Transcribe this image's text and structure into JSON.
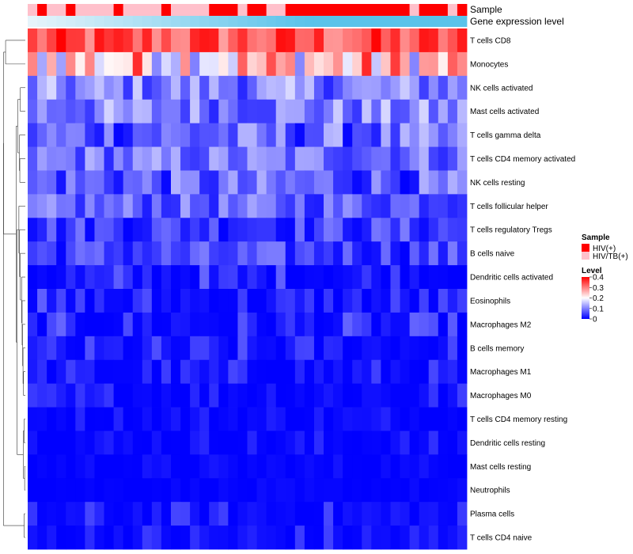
{
  "chart_data": {
    "type": "heatmap",
    "title": "",
    "annotation_tracks": [
      {
        "key": "sample",
        "label": "Sample"
      },
      {
        "key": "gene_expression",
        "label": "Gene expression level"
      }
    ],
    "rows": [
      "T cells CD8",
      "Monocytes",
      "NK cells activated",
      "Mast cells activated",
      "T cells gamma delta",
      "T cells CD4 memory activated",
      "NK cells resting",
      "T cells follicular helper",
      "T cells regulatory  Tregs",
      "B cells naive",
      "Dendritic cells activated",
      "Eosinophils",
      "Macrophages M2",
      "B cells memory",
      "Macrophages M1",
      "Macrophages M0",
      "T cells CD4 memory resting",
      "Dendritic cells resting",
      "Mast cells resting",
      "Neutrophils",
      "Plasma cells",
      "T cells CD4 naive"
    ],
    "n_columns": 46,
    "sample_groups": [
      "HIV(+)",
      "HIV/TB(+)"
    ],
    "sample_group_colors": [
      "#ff0000",
      "#ffc0cb"
    ],
    "sample_annotation": [
      1,
      0,
      1,
      1,
      0,
      1,
      1,
      1,
      1,
      0,
      1,
      1,
      1,
      1,
      0,
      1,
      1,
      1,
      1,
      0,
      0,
      0,
      1,
      0,
      0,
      1,
      1,
      0,
      0,
      0,
      0,
      0,
      0,
      0,
      0,
      0,
      0,
      0,
      0,
      0,
      1,
      0,
      0,
      0,
      1,
      0
    ],
    "gene_expression_gradient": [
      "#e6f4fb",
      "#5bc3ea"
    ],
    "color_scale": {
      "min": 0,
      "max": 0.4,
      "colors": [
        "#0000ff",
        "#ffffff",
        "#ff0000"
      ],
      "midpoint": 0.2
    },
    "legend": {
      "sample_title": "Sample",
      "level_title": "Level",
      "level_ticks": [
        "0.4",
        "0.3",
        "0.2",
        "0.1",
        "0"
      ],
      "level_tick_values": [
        0.4,
        0.3,
        0.2,
        0.1,
        0
      ],
      "position": "right"
    },
    "row_ranges": [
      [
        0.26,
        0.4
      ],
      [
        0.1,
        0.38
      ],
      [
        0.03,
        0.17
      ],
      [
        0.03,
        0.17
      ],
      [
        0.0,
        0.15
      ],
      [
        0.03,
        0.15
      ],
      [
        0.0,
        0.14
      ],
      [
        0.02,
        0.13
      ],
      [
        0.0,
        0.1
      ],
      [
        0.0,
        0.1
      ],
      [
        0.0,
        0.09
      ],
      [
        0.0,
        0.08
      ],
      [
        0.0,
        0.08
      ],
      [
        0.0,
        0.07
      ],
      [
        0.0,
        0.06
      ],
      [
        0.0,
        0.06
      ],
      [
        0.0,
        0.04
      ],
      [
        0.0,
        0.04
      ],
      [
        0.0,
        0.02
      ],
      [
        0.0,
        0.01
      ],
      [
        0.0,
        0.06
      ],
      [
        0.0,
        0.06
      ]
    ]
  }
}
